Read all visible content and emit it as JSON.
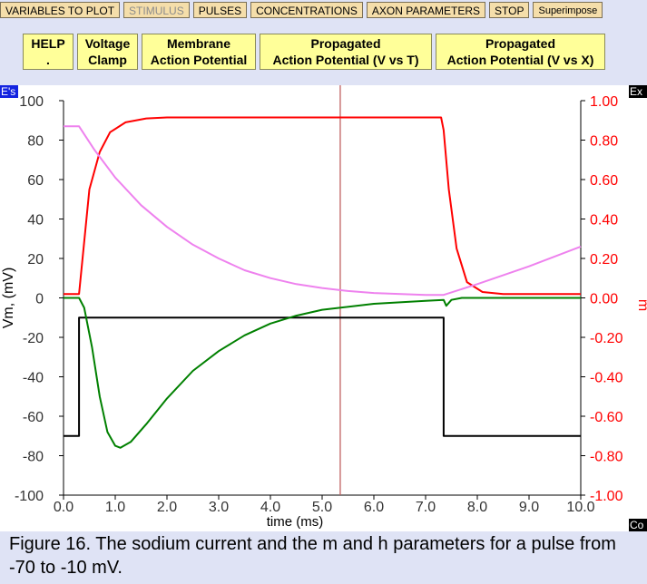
{
  "toolbar": [
    {
      "label": "VARIABLES TO PLOT",
      "state": "normal"
    },
    {
      "label": "STIMULUS",
      "state": "disabled"
    },
    {
      "label": "PULSES",
      "state": "normal"
    },
    {
      "label": "CONCENTRATIONS",
      "state": "normal"
    },
    {
      "label": "AXON PARAMETERS",
      "state": "normal"
    },
    {
      "label": "STOP",
      "state": "normal"
    },
    {
      "label": "Superimpose",
      "state": "normal"
    }
  ],
  "actions": {
    "help": {
      "line1": "HELP",
      "line2": "."
    },
    "voltage_clamp": {
      "line1": "Voltage",
      "line2": "Clamp"
    },
    "membrane_ap": {
      "line1": "Membrane",
      "line2": "Action Potential"
    },
    "prop_ap_vt": {
      "line1": "Propagated",
      "line2": "Action Potential (V vs T)"
    },
    "prop_ap_vx": {
      "line1": "Propagated",
      "line2": "Action Potential (V vs X)"
    }
  },
  "panel_tags": {
    "left": "E's",
    "right": "Ex",
    "bottom": "Co"
  },
  "colors": {
    "voltage": "#000000",
    "m": "#ff0000",
    "h": "#ee82ee",
    "sodium_current": "#008000",
    "cursor": "#c06060",
    "toolbar_button": "#f5deaa",
    "action_button": "#ffff99"
  },
  "chart_data": {
    "type": "line",
    "xlabel": "time (ms)",
    "ylabel": "Vm, (mV)",
    "y2label": "m",
    "xlim": [
      0,
      10
    ],
    "ylim": [
      -100,
      100
    ],
    "y2lim": [
      -1.0,
      1.0
    ],
    "x_ticks": [
      "0.0",
      "1.0",
      "2.0",
      "3.0",
      "4.0",
      "5.0",
      "6.0",
      "7.0",
      "8.0",
      "9.0",
      "10.0"
    ],
    "y_ticks": [
      "100",
      "80",
      "60",
      "40",
      "20",
      "0",
      "-20",
      "-40",
      "-60",
      "-80",
      "-100"
    ],
    "y2_ticks": [
      "1.00",
      "0.80",
      "0.60",
      "0.40",
      "0.20",
      "0.00",
      "-0.20",
      "-0.40",
      "-0.60",
      "-0.80",
      "-1.00"
    ],
    "cursor_x": 5.35,
    "series": [
      {
        "key": "voltage",
        "axis": "left",
        "points": [
          [
            0,
            -70
          ],
          [
            0.3,
            -70
          ],
          [
            0.3,
            -10
          ],
          [
            7.35,
            -10
          ],
          [
            7.35,
            -70
          ],
          [
            10,
            -70
          ]
        ]
      },
      {
        "key": "m",
        "axis": "right",
        "points": [
          [
            0,
            0.02
          ],
          [
            0.3,
            0.02
          ],
          [
            0.5,
            0.55
          ],
          [
            0.7,
            0.74
          ],
          [
            0.9,
            0.84
          ],
          [
            1.2,
            0.89
          ],
          [
            1.6,
            0.91
          ],
          [
            2.0,
            0.915
          ],
          [
            7.3,
            0.915
          ],
          [
            7.35,
            0.85
          ],
          [
            7.45,
            0.55
          ],
          [
            7.6,
            0.25
          ],
          [
            7.8,
            0.08
          ],
          [
            8.1,
            0.03
          ],
          [
            8.5,
            0.02
          ],
          [
            10,
            0.02
          ]
        ]
      },
      {
        "key": "h",
        "axis": "right",
        "points": [
          [
            0,
            0.87
          ],
          [
            0.3,
            0.87
          ],
          [
            0.6,
            0.75
          ],
          [
            1.0,
            0.61
          ],
          [
            1.5,
            0.47
          ],
          [
            2.0,
            0.36
          ],
          [
            2.5,
            0.27
          ],
          [
            3.0,
            0.2
          ],
          [
            3.5,
            0.14
          ],
          [
            4.0,
            0.1
          ],
          [
            4.5,
            0.07
          ],
          [
            5.0,
            0.05
          ],
          [
            5.5,
            0.035
          ],
          [
            6.0,
            0.025
          ],
          [
            7.0,
            0.015
          ],
          [
            7.35,
            0.015
          ],
          [
            8.0,
            0.07
          ],
          [
            9.0,
            0.16
          ],
          [
            10.0,
            0.26
          ]
        ]
      },
      {
        "key": "sodium_current",
        "axis": "left",
        "points": [
          [
            0,
            0
          ],
          [
            0.3,
            0
          ],
          [
            0.4,
            -5
          ],
          [
            0.55,
            -25
          ],
          [
            0.7,
            -50
          ],
          [
            0.85,
            -68
          ],
          [
            1.0,
            -75
          ],
          [
            1.1,
            -76
          ],
          [
            1.3,
            -73
          ],
          [
            1.6,
            -64
          ],
          [
            2.0,
            -51
          ],
          [
            2.5,
            -37
          ],
          [
            3.0,
            -27
          ],
          [
            3.5,
            -19
          ],
          [
            4.0,
            -13
          ],
          [
            4.5,
            -9
          ],
          [
            5.0,
            -6
          ],
          [
            6.0,
            -3
          ],
          [
            7.0,
            -1.5
          ],
          [
            7.35,
            -1
          ],
          [
            7.4,
            -4
          ],
          [
            7.5,
            -1
          ],
          [
            7.7,
            0
          ],
          [
            10,
            0
          ]
        ]
      }
    ]
  }
}
